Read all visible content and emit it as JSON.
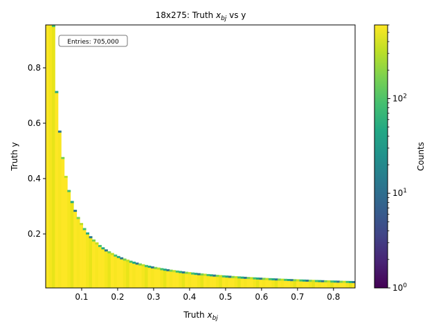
{
  "chart_data": {
    "type": "heatmap",
    "title_main": "18x275: Truth ",
    "title_var": "x",
    "title_sub": "bj",
    "title_tail": " vs y",
    "xlabel_main": "Truth ",
    "xlabel_var": "x",
    "xlabel_sub": "bj",
    "ylabel": "Truth y",
    "xlim": [
      0.0,
      0.86
    ],
    "ylim": [
      0.005,
      0.955
    ],
    "x_ticks": [
      0.1,
      0.2,
      0.3,
      0.4,
      0.5,
      0.6,
      0.7,
      0.8
    ],
    "x_tick_labels": [
      "0.1",
      "0.2",
      "0.3",
      "0.4",
      "0.5",
      "0.6",
      "0.7",
      "0.8"
    ],
    "y_ticks": [
      0.2,
      0.4,
      0.6,
      0.8
    ],
    "y_tick_labels": [
      "0.2",
      "0.4",
      "0.6",
      "0.8"
    ],
    "entries_label": "Entries: 705,000",
    "kinematic_boundary_product": 0.0246,
    "colorbar": {
      "label": "Counts",
      "scale": "log",
      "range": [
        1,
        600
      ],
      "colormap": "viridis",
      "tick_labels": [
        {
          "value": 1,
          "base": "10",
          "exp": "0"
        },
        {
          "value": 10,
          "base": "10",
          "exp": "1"
        },
        {
          "value": 100,
          "base": "10",
          "exp": "2"
        }
      ]
    }
  }
}
